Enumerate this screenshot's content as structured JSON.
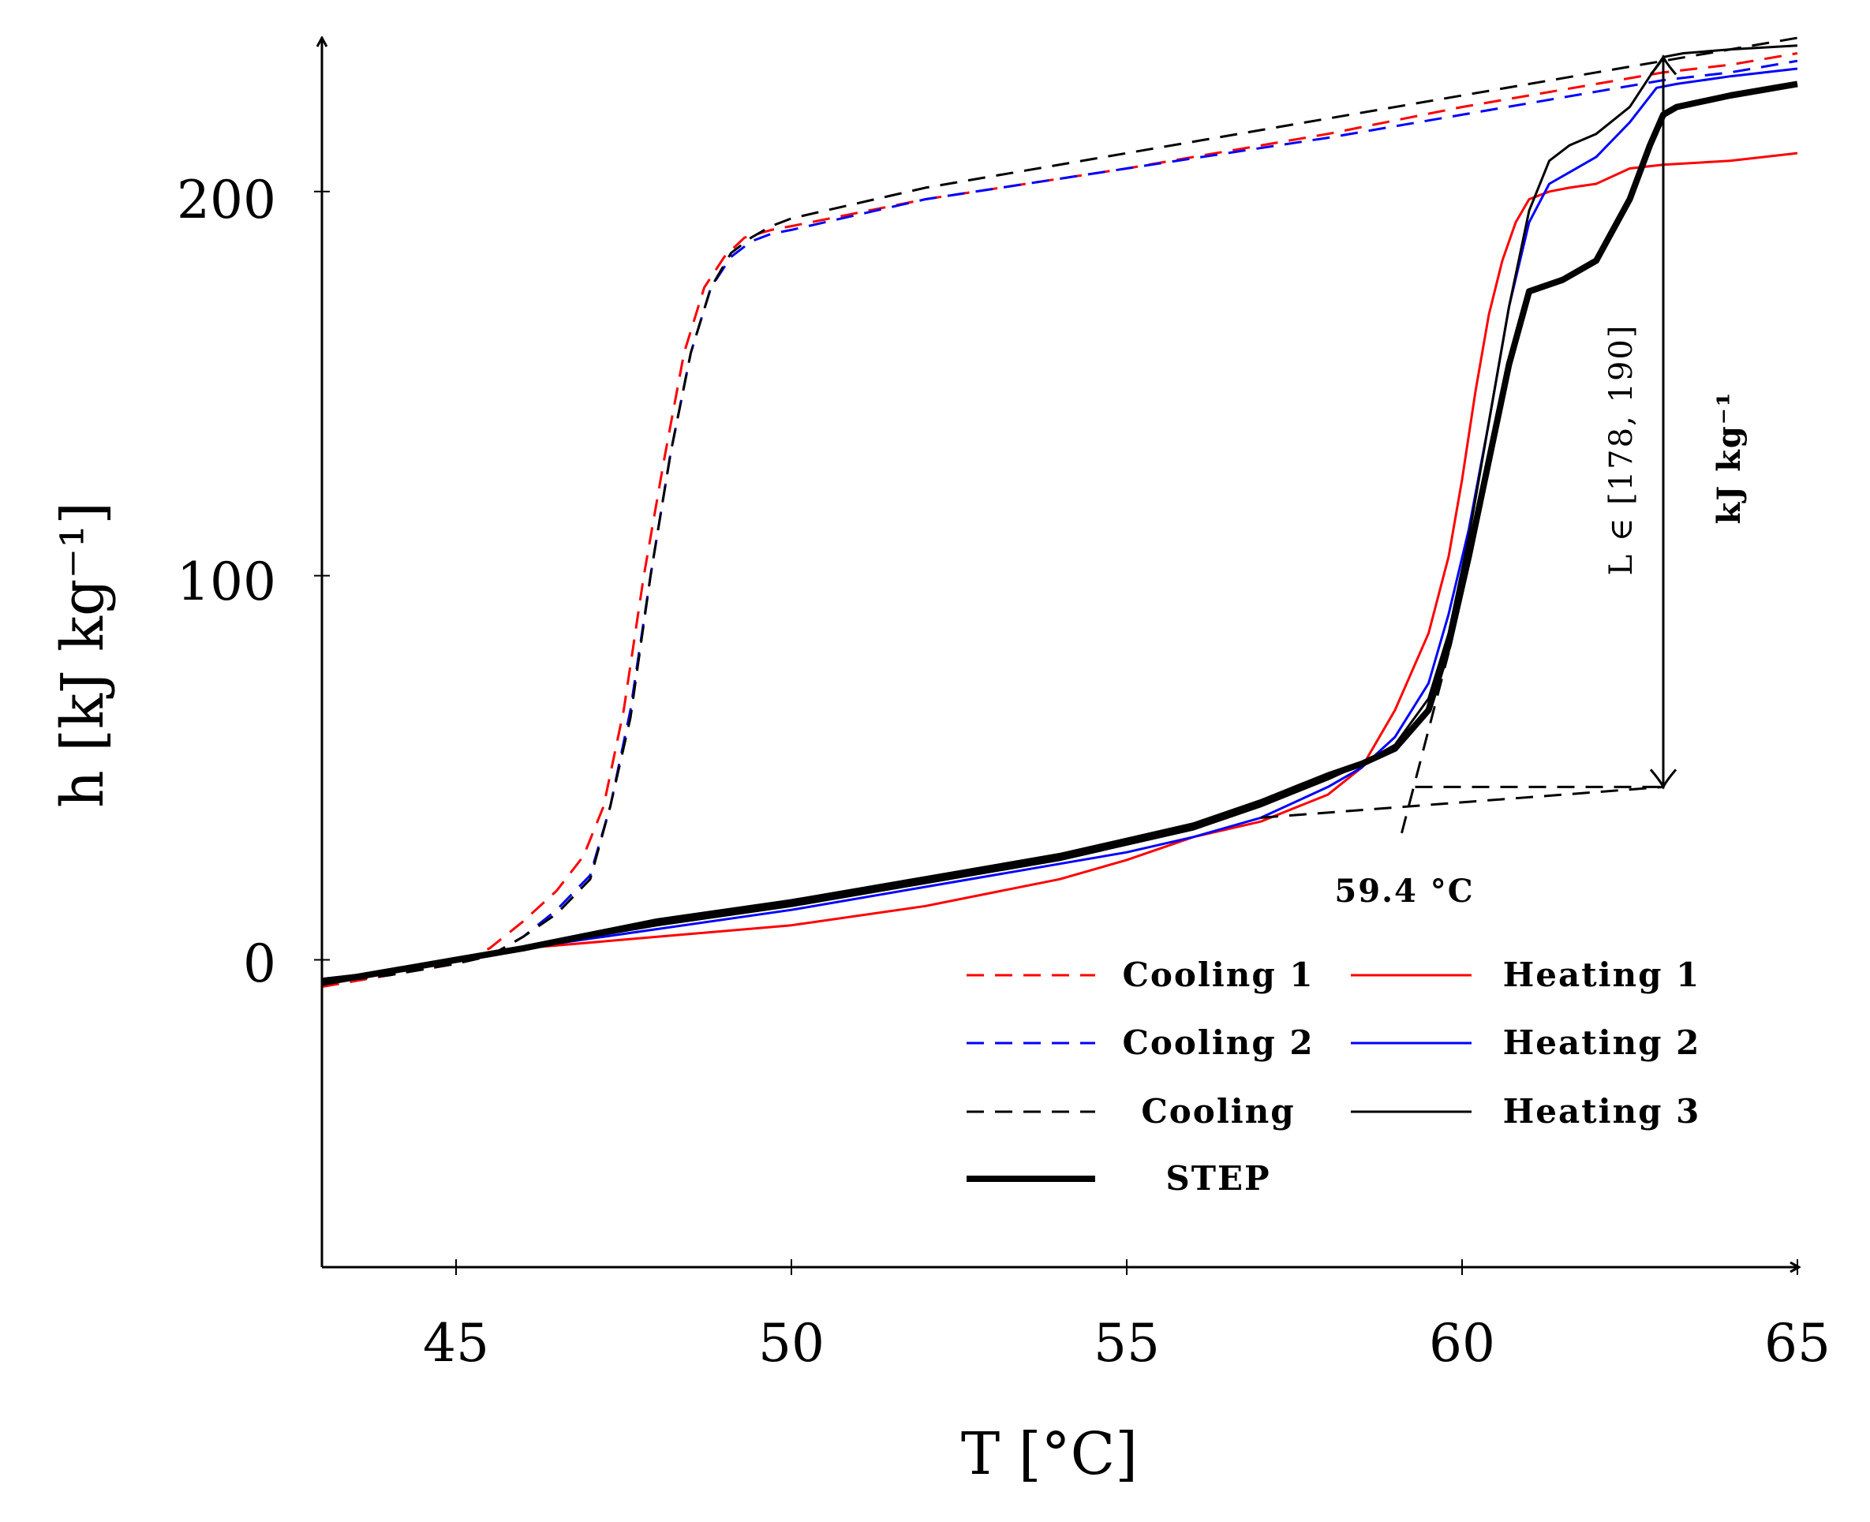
{
  "chart_data": {
    "type": "line",
    "title": "",
    "xlabel": "T [°C]",
    "ylabel": "h [kJ kg⁻¹]",
    "xlim": [
      43,
      65
    ],
    "ylim": [
      -80,
      240
    ],
    "xticks": [
      45,
      50,
      55,
      60,
      65
    ],
    "yticks": [
      0,
      100,
      200
    ],
    "xtick_labels": [
      "45",
      "50",
      "55",
      "60",
      "65"
    ],
    "ytick_labels": [
      "0",
      "100",
      "200"
    ],
    "grid": false,
    "legend_position": "bottom-right",
    "series": [
      {
        "name": "Cooling 1",
        "color": "#ff0000",
        "style": "dashed",
        "weight": "thin",
        "x": [
          43,
          44,
          45,
          45.5,
          46,
          46.5,
          46.9,
          47.2,
          47.5,
          47.8,
          48.1,
          48.4,
          48.7,
          49.0,
          49.3,
          49.7,
          50,
          52,
          55,
          58,
          60,
          62,
          63,
          64,
          65
        ],
        "y": [
          -7,
          -4,
          -1,
          3,
          10,
          18,
          27,
          40,
          65,
          100,
          130,
          158,
          175,
          183,
          188,
          190,
          191,
          198,
          206,
          215,
          222,
          228,
          231,
          233,
          236
        ]
      },
      {
        "name": "Cooling 2",
        "color": "#0000ff",
        "style": "dashed",
        "weight": "thin",
        "x": [
          43,
          44,
          45,
          45.5,
          46,
          46.5,
          47.0,
          47.3,
          47.6,
          47.9,
          48.2,
          48.5,
          48.8,
          49.1,
          49.4,
          49.7,
          50,
          52,
          55,
          58,
          60,
          62,
          63,
          64,
          65
        ],
        "y": [
          -6,
          -4,
          -1,
          1,
          6,
          13,
          22,
          40,
          65,
          100,
          132,
          158,
          175,
          183,
          187,
          189,
          190,
          198,
          206,
          214,
          220,
          226,
          229,
          231,
          234
        ]
      },
      {
        "name": "Cooling",
        "color": "#000000",
        "style": "dashed",
        "weight": "thin",
        "x": [
          43,
          44,
          45,
          45.5,
          46,
          46.5,
          47.0,
          47.3,
          47.6,
          47.9,
          48.2,
          48.5,
          48.8,
          49.1,
          49.4,
          49.7,
          50,
          52,
          55,
          58,
          60,
          62,
          63,
          64,
          65
        ],
        "y": [
          -6,
          -4,
          -1,
          1,
          6,
          12,
          21,
          40,
          63,
          100,
          132,
          158,
          175,
          184,
          188,
          191,
          193,
          201,
          210,
          219,
          225,
          231,
          234,
          237,
          240
        ]
      },
      {
        "name": "Heating 1",
        "color": "#ff0000",
        "style": "solid",
        "weight": "thin",
        "x": [
          43,
          44,
          45,
          46,
          48,
          50,
          52,
          54,
          55,
          56,
          57,
          58,
          58.5,
          59,
          59.5,
          59.8,
          60.0,
          60.2,
          60.4,
          60.6,
          60.8,
          61.0,
          61.3,
          61.6,
          62.0,
          62.5,
          63,
          64,
          65
        ],
        "y": [
          -6,
          -3,
          0,
          3,
          6,
          9,
          14,
          21,
          26,
          32,
          36,
          43,
          50,
          65,
          85,
          105,
          125,
          148,
          168,
          182,
          192,
          198,
          200,
          201,
          202,
          206,
          207,
          208,
          210
        ]
      },
      {
        "name": "Heating 2",
        "color": "#0000ff",
        "style": "solid",
        "weight": "thin",
        "x": [
          43,
          44,
          45,
          46,
          48,
          50,
          52,
          54,
          55,
          56,
          57,
          58,
          58.5,
          59,
          59.5,
          59.8,
          60.1,
          60.4,
          60.7,
          61.0,
          61.3,
          61.6,
          62.0,
          62.5,
          62.9,
          63.2,
          64,
          65
        ],
        "y": [
          -5,
          -3,
          0,
          3,
          8,
          13,
          19,
          25,
          28,
          32,
          37,
          45,
          50,
          58,
          72,
          90,
          112,
          140,
          170,
          192,
          202,
          205,
          209,
          218,
          227,
          228,
          230,
          232
        ]
      },
      {
        "name": "Heating 3",
        "color": "#000000",
        "style": "solid",
        "weight": "thin",
        "x": [
          43,
          44,
          45,
          46,
          48,
          50,
          52,
          54,
          55,
          56,
          57,
          58,
          58.5,
          59,
          59.5,
          59.8,
          60.1,
          60.4,
          60.7,
          61.0,
          61.3,
          61.6,
          62.0,
          62.5,
          62.8,
          63.0,
          63.3,
          64,
          65
        ],
        "y": [
          -5,
          -3,
          0,
          3,
          9,
          14,
          20,
          26,
          30,
          34,
          40,
          47,
          51,
          56,
          68,
          85,
          110,
          140,
          170,
          195,
          208,
          212,
          215,
          222,
          230,
          235,
          236,
          237,
          238
        ]
      },
      {
        "name": "STEP",
        "color": "#000000",
        "style": "solid",
        "weight": "thick",
        "x": [
          43,
          44,
          45,
          46,
          48,
          50,
          52,
          54,
          55,
          56,
          57,
          58,
          58.5,
          59,
          59.5,
          59.8,
          60.1,
          60.4,
          60.7,
          61.0,
          61.5,
          62.0,
          62.5,
          62.8,
          63.0,
          63.2,
          64,
          65
        ],
        "y": [
          -6,
          -3,
          0,
          3,
          10,
          15,
          21,
          27,
          31,
          35,
          41,
          48,
          51,
          55,
          65,
          82,
          105,
          130,
          155,
          174,
          177,
          182,
          198,
          212,
          220,
          222,
          225,
          228
        ]
      }
    ],
    "annotations": {
      "onset_label": "59.4 °C",
      "latent_label": "L ∈ [178, 190]",
      "latent_unit": "kJ kg⁻¹"
    },
    "onset_lines": {
      "baseline": {
        "x": [
          57.0,
          63.0
        ],
        "y": [
          37,
          45
        ]
      },
      "tangent": {
        "x": [
          59.1,
          59.8
        ],
        "y": [
          33,
          80
        ]
      },
      "horizontal": {
        "x": [
          59.3,
          63.0
        ],
        "y": [
          45,
          45
        ]
      }
    },
    "latent_arrow": {
      "x": 63.0,
      "y_from": 45,
      "y_to": 235
    }
  }
}
